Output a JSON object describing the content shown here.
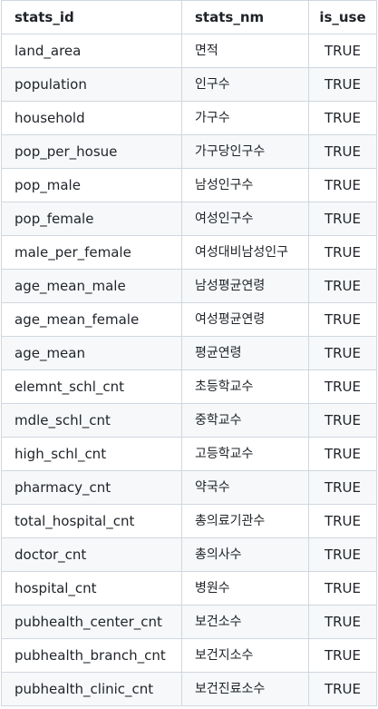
{
  "table": {
    "headers": [
      "stats_id",
      "stats_nm",
      "is_use"
    ],
    "rows": [
      [
        "land_area",
        "면적",
        "TRUE"
      ],
      [
        "population",
        "인구수",
        "TRUE"
      ],
      [
        "household",
        "가구수",
        "TRUE"
      ],
      [
        "pop_per_hosue",
        "가구당인구수",
        "TRUE"
      ],
      [
        "pop_male",
        "남성인구수",
        "TRUE"
      ],
      [
        "pop_female",
        "여성인구수",
        "TRUE"
      ],
      [
        "male_per_female",
        "여성대비남성인구",
        "TRUE"
      ],
      [
        "age_mean_male",
        "남성평균연령",
        "TRUE"
      ],
      [
        "age_mean_female",
        "여성평균연령",
        "TRUE"
      ],
      [
        "age_mean",
        "평균연령",
        "TRUE"
      ],
      [
        "elemnt_schl_cnt",
        "초등학교수",
        "TRUE"
      ],
      [
        "mdle_schl_cnt",
        "중학교수",
        "TRUE"
      ],
      [
        "high_schl_cnt",
        "고등학교수",
        "TRUE"
      ],
      [
        "pharmacy_cnt",
        "약국수",
        "TRUE"
      ],
      [
        "total_hospital_cnt",
        "총의료기관수",
        "TRUE"
      ],
      [
        "doctor_cnt",
        "총의사수",
        "TRUE"
      ],
      [
        "hospital_cnt",
        "병원수",
        "TRUE"
      ],
      [
        "pubhealth_center_cnt",
        "보건소수",
        "TRUE"
      ],
      [
        "pubhealth_branch_cnt",
        "보건지소수",
        "TRUE"
      ],
      [
        "pubhealth_clinic_cnt",
        "보건진료소수",
        "TRUE"
      ]
    ]
  }
}
